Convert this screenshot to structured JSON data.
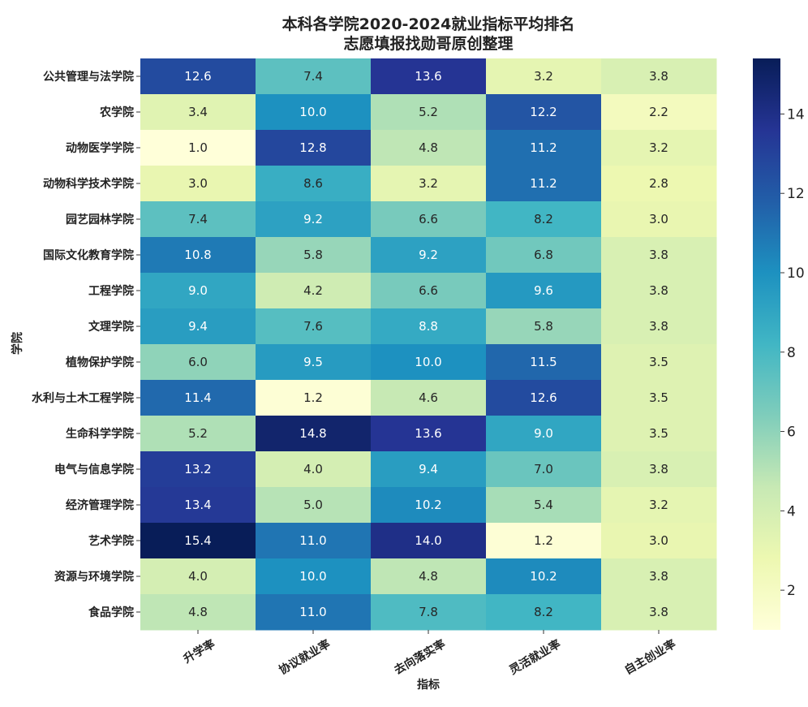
{
  "chart_data": {
    "type": "heatmap",
    "title": "本科各学院2020-2024就业指标平均排名",
    "subtitle": "志愿填报找勋哥原创整理",
    "xlabel": "指标",
    "ylabel": "学院",
    "columns": [
      "升学率",
      "协议就业率",
      "去向落实率",
      "灵活就业率",
      "自主创业率"
    ],
    "rows": [
      "公共管理与法学院",
      "农学院",
      "动物医学学院",
      "动物科学技术学院",
      "园艺园林学院",
      "国际文化教育学院",
      "工程学院",
      "文理学院",
      "植物保护学院",
      "水利与土木工程学院",
      "生命科学学院",
      "电气与信息学院",
      "经济管理学院",
      "艺术学院",
      "资源与环境学院",
      "食品学院"
    ],
    "values": [
      [
        12.6,
        7.4,
        13.6,
        3.2,
        3.8
      ],
      [
        3.4,
        10.0,
        5.2,
        12.2,
        2.2
      ],
      [
        1.0,
        12.8,
        4.8,
        11.2,
        3.2
      ],
      [
        3.0,
        8.6,
        3.2,
        11.2,
        2.8
      ],
      [
        7.4,
        9.2,
        6.6,
        8.2,
        3.0
      ],
      [
        10.8,
        5.8,
        9.2,
        6.8,
        3.8
      ],
      [
        9.0,
        4.2,
        6.6,
        9.6,
        3.8
      ],
      [
        9.4,
        7.6,
        8.8,
        5.8,
        3.8
      ],
      [
        6.0,
        9.5,
        10.0,
        11.5,
        3.5
      ],
      [
        11.4,
        1.2,
        4.6,
        12.6,
        3.5
      ],
      [
        5.2,
        14.8,
        13.6,
        9.0,
        3.5
      ],
      [
        13.2,
        4.0,
        9.4,
        7.0,
        3.8
      ],
      [
        13.4,
        5.0,
        10.2,
        5.4,
        3.2
      ],
      [
        15.4,
        11.0,
        14.0,
        1.2,
        3.0
      ],
      [
        4.0,
        10.0,
        4.8,
        10.2,
        3.8
      ],
      [
        4.8,
        11.0,
        7.8,
        8.2,
        3.8
      ]
    ],
    "colormap": "YlGnBu",
    "vmin": 1.0,
    "vmax": 15.4,
    "colorbar_ticks": [
      "2",
      "4",
      "6",
      "8",
      "10",
      "12",
      "14"
    ],
    "annotation_format": "one-decimal",
    "legend_placement": "right colorbar"
  }
}
